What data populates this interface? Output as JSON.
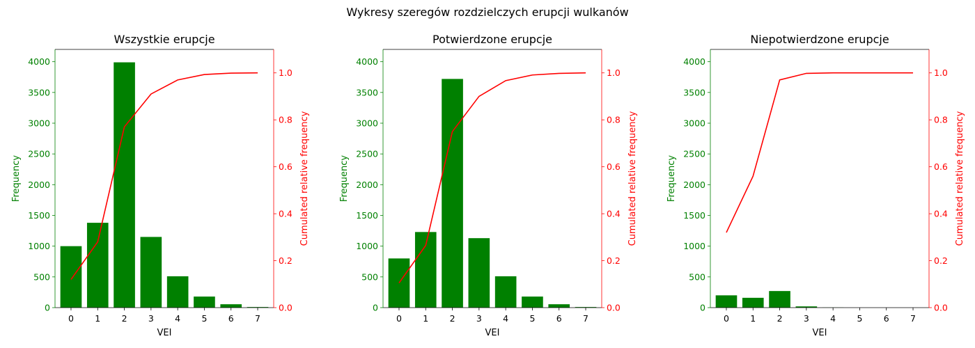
{
  "suptitle": "Wykresy szeregów rozdzielczych erupcji wulkanów",
  "colors": {
    "bars": "#008000",
    "line": "#ff0000",
    "left_axis_text": "#008000",
    "right_axis_text": "#ff0000"
  },
  "chart_data": [
    {
      "type": "bar",
      "title": "Wszystkie erupcje",
      "xlabel": "VEI",
      "ylabel": "Frequency",
      "y2label": "Cumulated relative frequency",
      "categories": [
        "0",
        "1",
        "2",
        "3",
        "4",
        "5",
        "6",
        "7"
      ],
      "ylim": [
        0,
        4200
      ],
      "y2lim": [
        0,
        1.1
      ],
      "yticks": [
        0,
        500,
        1000,
        1500,
        2000,
        2500,
        3000,
        3500,
        4000
      ],
      "y2ticks": [
        0.0,
        0.2,
        0.4,
        0.6,
        0.8,
        1.0
      ],
      "series": [
        {
          "type": "bar",
          "values": [
            1000,
            1380,
            3990,
            1150,
            510,
            180,
            55,
            10
          ]
        },
        {
          "type": "line",
          "axis": "right",
          "values": [
            0.12,
            0.28,
            0.77,
            0.91,
            0.97,
            0.993,
            0.999,
            1.0
          ]
        }
      ]
    },
    {
      "type": "bar",
      "title": "Potwierdzone erupcje",
      "xlabel": "VEI",
      "ylabel": "Frequency",
      "y2label": "Cumulated relative frequency",
      "categories": [
        "0",
        "1",
        "2",
        "3",
        "4",
        "5",
        "6",
        "7"
      ],
      "ylim": [
        0,
        4200
      ],
      "y2lim": [
        0,
        1.1
      ],
      "yticks": [
        0,
        500,
        1000,
        1500,
        2000,
        2500,
        3000,
        3500,
        4000
      ],
      "y2ticks": [
        0.0,
        0.2,
        0.4,
        0.6,
        0.8,
        1.0
      ],
      "series": [
        {
          "type": "bar",
          "values": [
            800,
            1230,
            3720,
            1130,
            510,
            180,
            55,
            10
          ]
        },
        {
          "type": "line",
          "axis": "right",
          "values": [
            0.105,
            0.265,
            0.75,
            0.9,
            0.967,
            0.991,
            0.998,
            1.0
          ]
        }
      ]
    },
    {
      "type": "bar",
      "title": "Niepotwierdzone erupcje",
      "xlabel": "VEI",
      "ylabel": "Frequency",
      "y2label": "Cumulated relative frequency",
      "categories": [
        "0",
        "1",
        "2",
        "3",
        "4",
        "5",
        "6",
        "7"
      ],
      "ylim": [
        0,
        4200
      ],
      "y2lim": [
        0,
        1.1
      ],
      "yticks": [
        0,
        500,
        1000,
        1500,
        2000,
        2500,
        3000,
        3500,
        4000
      ],
      "y2ticks": [
        0.0,
        0.2,
        0.4,
        0.6,
        0.8,
        1.0
      ],
      "series": [
        {
          "type": "bar",
          "values": [
            200,
            160,
            270,
            20,
            2,
            0,
            0,
            0
          ]
        },
        {
          "type": "line",
          "axis": "right",
          "values": [
            0.32,
            0.56,
            0.97,
            0.998,
            1.0,
            1.0,
            1.0,
            1.0
          ]
        }
      ]
    }
  ]
}
